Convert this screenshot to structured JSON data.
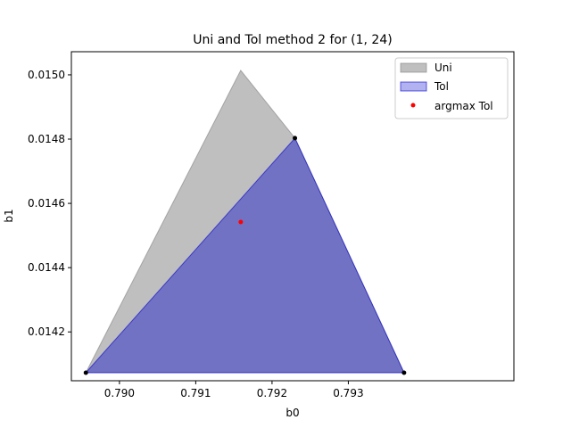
{
  "chart_data": {
    "type": "area",
    "title": "Uni and Tol method 2 for (1, 24)",
    "xlabel": "b0",
    "ylabel": "b1",
    "xlim": [
      0.78937,
      0.79517
    ],
    "ylim": [
      0.014048,
      0.015072
    ],
    "xticks": [
      0.79,
      0.791,
      0.792,
      0.793
    ],
    "xtick_labels": [
      "0.790",
      "0.791",
      "0.792",
      "0.793"
    ],
    "yticks": [
      0.0142,
      0.0144,
      0.0146,
      0.0148,
      0.015
    ],
    "ytick_labels": [
      "0.0142",
      "0.0144",
      "0.0146",
      "0.0148",
      "0.0150"
    ],
    "grid": false,
    "legend_position": "top-right",
    "series": [
      {
        "name": "Uni",
        "kind": "polygon",
        "color": "#808080",
        "points": [
          [
            0.78956,
            0.014073
          ],
          [
            0.79159,
            0.015014
          ],
          [
            0.7923,
            0.014803
          ],
          [
            0.79373,
            0.014073
          ]
        ]
      },
      {
        "name": "Tol",
        "kind": "polygon",
        "color": "#0000cd",
        "points": [
          [
            0.78956,
            0.014073
          ],
          [
            0.7923,
            0.014803
          ],
          [
            0.79373,
            0.014073
          ]
        ]
      },
      {
        "name": "argmax Tol",
        "kind": "scatter",
        "color": "#ff0000",
        "points": [
          [
            0.79159,
            0.014542
          ]
        ]
      }
    ],
    "vertex_markers": {
      "color": "#000000",
      "points": [
        [
          0.78956,
          0.014073
        ],
        [
          0.7923,
          0.014803
        ],
        [
          0.79373,
          0.014073
        ]
      ]
    }
  }
}
